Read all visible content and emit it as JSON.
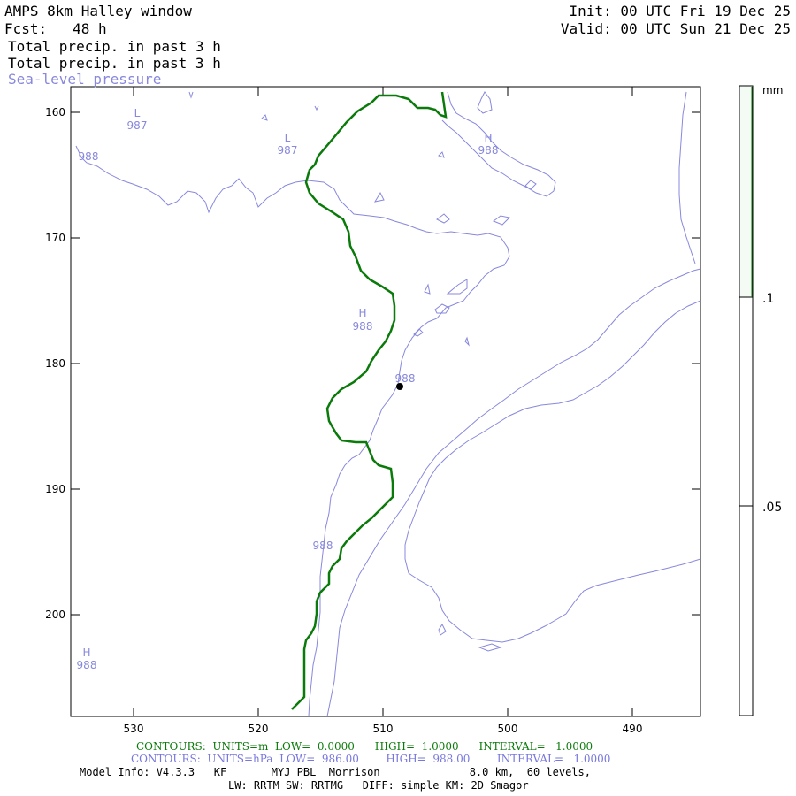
{
  "header": {
    "title": "AMPS 8km Halley window",
    "fcst": "Fcst:   48 h",
    "field1": "Total precip. in past 3 h",
    "field2": "Total precip. in past 3 h",
    "field3": "Sea-level pressure",
    "init": "Init: 00 UTC Fri 19 Dec 25",
    "valid": "Valid: 00 UTC Sun 21 Dec 25"
  },
  "map": {
    "x_ticks": [
      "530",
      "520",
      "510",
      "500",
      "490"
    ],
    "y_ticks": [
      "160",
      "170",
      "180",
      "190",
      "200"
    ],
    "pressure_labels": [
      {
        "letter": "L",
        "value": "987"
      },
      {
        "letter": "L",
        "value": "987"
      },
      {
        "letter": "H",
        "value": "988"
      },
      {
        "letter": "",
        "value": "988"
      },
      {
        "letter": "H",
        "value": "988"
      },
      {
        "letter": "",
        "value": "988"
      },
      {
        "letter": "",
        "value": "988"
      },
      {
        "letter": "H",
        "value": "988"
      }
    ],
    "colors": {
      "precip": "#0a7a0a",
      "pressure": "#8888dd",
      "axis": "#000000"
    }
  },
  "colorbar": {
    "unit": "mm",
    "labels": [
      ".1",
      ".05"
    ]
  },
  "footer": {
    "contours_precip": "CONTOURS:  UNITS=m  LOW=  0.0000      HIGH=  1.0000      INTERVAL=   1.0000",
    "contours_pressure": "CONTOURS:  UNITS=hPa  LOW=  986.00        HIGH=  988.00        INTERVAL=   1.0000",
    "model_info": "Model Info: V4.3.3   KF       MYJ PBL  Morrison              8.0 km,  60 levels,",
    "physics": "LW: RRTM SW: RRTMG   DIFF: simple KM: 2D Smagor"
  }
}
